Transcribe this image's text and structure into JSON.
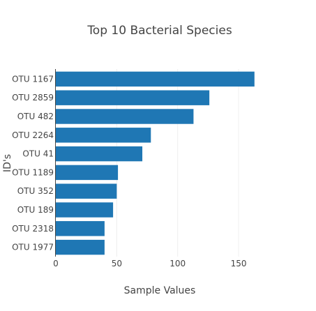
{
  "chart_data": {
    "type": "bar",
    "orientation": "horizontal",
    "title": "Top 10 Bacterial Species",
    "xlabel": "Sample Values",
    "ylabel": "ID's",
    "categories": [
      "OTU 1167",
      "OTU 2859",
      "OTU 482",
      "OTU 2264",
      "OTU 41",
      "OTU 1189",
      "OTU 352",
      "OTU 189",
      "OTU 2318",
      "OTU 1977"
    ],
    "values": [
      163,
      126,
      113,
      78,
      71,
      51,
      50,
      47,
      40,
      40
    ],
    "xlim": [
      0,
      170
    ],
    "xticks": [
      0,
      50,
      100,
      150
    ],
    "xtick_labels": [
      "0",
      "50",
      "100",
      "150"
    ],
    "bar_color": "#1f77b4",
    "grid": true,
    "legend": false
  }
}
